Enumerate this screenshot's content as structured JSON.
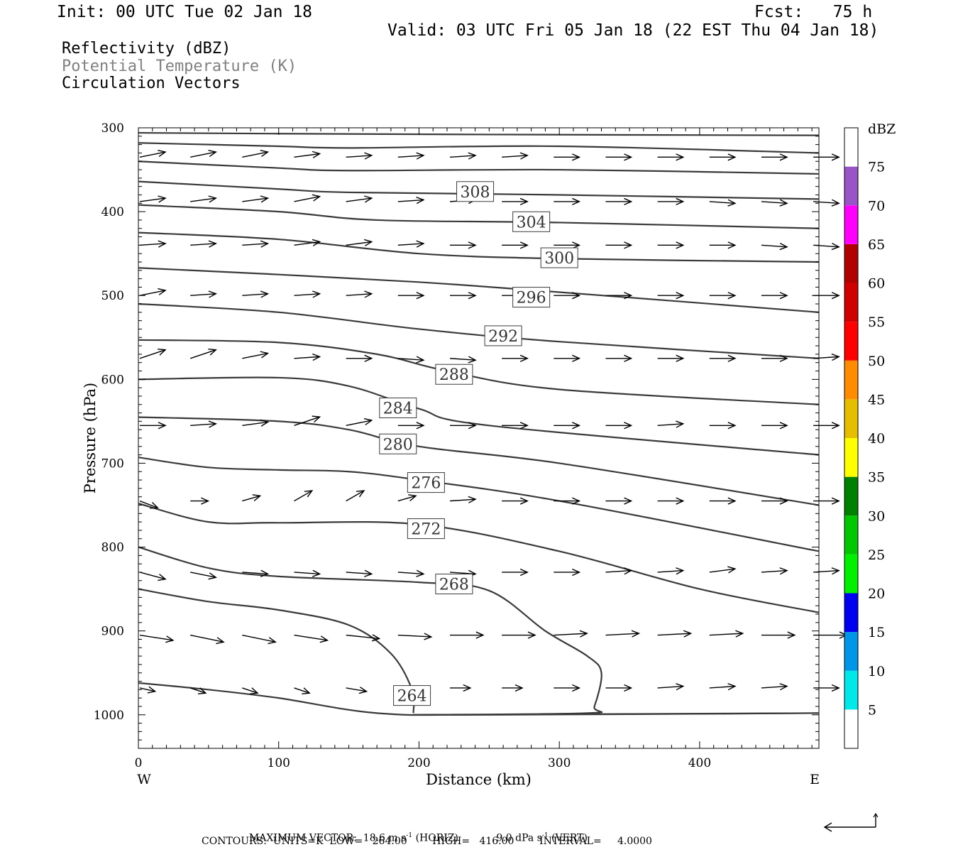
{
  "header": {
    "init": "Init: 00 UTC Tue 02 Jan 18",
    "fcst": "Fcst:   75 h",
    "valid": "Valid: 03 UTC Fri 05 Jan 18 (22 EST Thu 04 Jan 18)",
    "field1": "Reflectivity (dBZ)",
    "field2": "Potential Temperature (K)",
    "field3": "Circulation Vectors"
  },
  "footer": {
    "max_vector_label": "MAXIMUM VECTOR:",
    "max_horiz": "18.6 m s",
    "max_horiz_unit": "(HORIZ)",
    "max_vert": "9.0 dPa s",
    "max_vert_unit": "(VERT)",
    "sup": "-1",
    "contours": "CONTOURS:  UNITS=K  LOW=   264.00        HIGH=   416.00        INTERVAL=     4.0000"
  },
  "colors": {
    "contour": "#3a3a3a",
    "vector": "#000000",
    "grey_text": "#808080"
  },
  "chart_data": {
    "type": "cross-section",
    "xlabel": "Distance (km)",
    "ylabel": "Pressure (hPa)",
    "xlim": [
      0,
      485
    ],
    "ylim": [
      1040,
      300
    ],
    "x_ticks": [
      0,
      100,
      200,
      300,
      400
    ],
    "y_ticks": [
      300,
      400,
      500,
      600,
      700,
      800,
      900,
      1000
    ],
    "x_end_labels": {
      "left": "W",
      "right": "E"
    },
    "colorbar": {
      "title": "dBZ",
      "labels": [
        "75",
        "70",
        "65",
        "60",
        "55",
        "50",
        "45",
        "40",
        "35",
        "30",
        "25",
        "20",
        "15",
        "10",
        "5"
      ],
      "bands": [
        {
          "from": 0,
          "to": 5,
          "color": "#ffffff"
        },
        {
          "from": 5,
          "to": 10,
          "color": "#00e8e8"
        },
        {
          "from": 10,
          "to": 15,
          "color": "#0096e8"
        },
        {
          "from": 15,
          "to": 20,
          "color": "#0000f0"
        },
        {
          "from": 20,
          "to": 25,
          "color": "#00f000"
        },
        {
          "from": 25,
          "to": 30,
          "color": "#00c800"
        },
        {
          "from": 30,
          "to": 35,
          "color": "#008000"
        },
        {
          "from": 35,
          "to": 40,
          "color": "#ffff00"
        },
        {
          "from": 40,
          "to": 45,
          "color": "#e6be00"
        },
        {
          "from": 45,
          "to": 50,
          "color": "#ff8c00"
        },
        {
          "from": 50,
          "to": 55,
          "color": "#ff0000"
        },
        {
          "from": 55,
          "to": 60,
          "color": "#d00000"
        },
        {
          "from": 60,
          "to": 65,
          "color": "#b00000"
        },
        {
          "from": 65,
          "to": 70,
          "color": "#ff00ff"
        },
        {
          "from": 70,
          "to": 75,
          "color": "#9955c8"
        },
        {
          "from": 75,
          "to": 80,
          "color": "#ffffff"
        }
      ]
    },
    "isentropes": [
      {
        "theta": null,
        "points": [
          [
            0,
            306
          ],
          [
            100,
            307
          ],
          [
            250,
            308
          ],
          [
            485,
            309
          ]
        ]
      },
      {
        "theta": null,
        "points": [
          [
            0,
            318
          ],
          [
            100,
            322
          ],
          [
            150,
            324
          ],
          [
            300,
            322
          ],
          [
            485,
            330
          ]
        ]
      },
      {
        "theta": null,
        "points": [
          [
            0,
            340
          ],
          [
            100,
            348
          ],
          [
            150,
            351
          ],
          [
            300,
            350
          ],
          [
            485,
            355
          ]
        ]
      },
      {
        "theta": 308,
        "label_at": [
          240,
          376
        ],
        "points": [
          [
            0,
            364
          ],
          [
            100,
            373
          ],
          [
            150,
            377
          ],
          [
            300,
            380
          ],
          [
            485,
            385
          ]
        ]
      },
      {
        "theta": 304,
        "label_at": [
          280,
          412
        ],
        "points": [
          [
            0,
            392
          ],
          [
            100,
            400
          ],
          [
            170,
            410
          ],
          [
            300,
            413
          ],
          [
            485,
            420
          ]
        ]
      },
      {
        "theta": 300,
        "label_at": [
          300,
          455
        ],
        "points": [
          [
            0,
            425
          ],
          [
            100,
            433
          ],
          [
            200,
            450
          ],
          [
            300,
            456
          ],
          [
            485,
            460
          ]
        ]
      },
      {
        "theta": 296,
        "label_at": [
          280,
          502
        ],
        "points": [
          [
            0,
            467
          ],
          [
            100,
            475
          ],
          [
            200,
            484
          ],
          [
            300,
            496
          ],
          [
            485,
            520
          ]
        ]
      },
      {
        "theta": 292,
        "label_at": [
          260,
          548
        ],
        "points": [
          [
            0,
            510
          ],
          [
            100,
            520
          ],
          [
            200,
            540
          ],
          [
            300,
            555
          ],
          [
            485,
            575
          ]
        ]
      },
      {
        "theta": 288,
        "label_at": [
          225,
          594
        ],
        "points": [
          [
            0,
            553
          ],
          [
            100,
            556
          ],
          [
            170,
            570
          ],
          [
            220,
            590
          ],
          [
            300,
            612
          ],
          [
            485,
            630
          ]
        ]
      },
      {
        "theta": 284,
        "label_at": [
          185,
          634
        ],
        "points": [
          [
            0,
            600
          ],
          [
            100,
            598
          ],
          [
            150,
            608
          ],
          [
            200,
            635
          ],
          [
            250,
            655
          ],
          [
            485,
            690
          ]
        ]
      },
      {
        "theta": 280,
        "label_at": [
          185,
          677
        ],
        "points": [
          [
            0,
            645
          ],
          [
            100,
            650
          ],
          [
            150,
            660
          ],
          [
            200,
            680
          ],
          [
            300,
            700
          ],
          [
            485,
            750
          ]
        ]
      },
      {
        "theta": 276,
        "label_at": [
          205,
          723
        ],
        "points": [
          [
            0,
            693
          ],
          [
            50,
            705
          ],
          [
            100,
            708
          ],
          [
            150,
            710
          ],
          [
            200,
            720
          ],
          [
            300,
            745
          ],
          [
            485,
            805
          ]
        ]
      },
      {
        "theta": 272,
        "label_at": [
          205,
          778
        ],
        "points": [
          [
            0,
            748
          ],
          [
            50,
            770
          ],
          [
            100,
            771
          ],
          [
            200,
            773
          ],
          [
            300,
            805
          ],
          [
            400,
            850
          ],
          [
            485,
            878
          ]
        ]
      },
      {
        "theta": 268,
        "label_at": [
          225,
          844
        ],
        "points": [
          [
            0,
            800
          ],
          [
            50,
            825
          ],
          [
            100,
            835
          ],
          [
            200,
            842
          ],
          [
            250,
            852
          ],
          [
            290,
            900
          ],
          [
            320,
            930
          ],
          [
            330,
            950
          ],
          [
            325,
            990
          ],
          [
            320,
            998
          ],
          [
            200,
            1000
          ],
          [
            485,
            998
          ]
        ]
      },
      {
        "theta": 264,
        "label_at": [
          195,
          977
        ],
        "points": [
          [
            0,
            850
          ],
          [
            50,
            865
          ],
          [
            100,
            875
          ],
          [
            150,
            893
          ],
          [
            180,
            927
          ],
          [
            195,
            970
          ],
          [
            196,
            998
          ]
        ]
      },
      {
        "theta": null,
        "points": [
          [
            0,
            962
          ],
          [
            50,
            970
          ],
          [
            100,
            980
          ],
          [
            170,
            998
          ],
          [
            250,
            1000
          ],
          [
            485,
            998
          ]
        ]
      }
    ],
    "vectors_note": "Circulation vectors: horizontal (m/s) and vertical (dPa/s) components shown as arrows; max 18.6 m s-1 horiz, 9.0 dPa s-1 vert",
    "vector_rows": [
      {
        "p": 335,
        "x": [
          0,
          36,
          73,
          110,
          147,
          184,
          221,
          258,
          295,
          332,
          369,
          406,
          443,
          480
        ],
        "u": [
          1,
          1,
          1,
          1,
          1,
          1,
          1,
          1,
          1,
          1,
          1,
          1,
          1,
          1
        ],
        "w": [
          0.3,
          0.3,
          0.3,
          0.2,
          0.1,
          0.1,
          0.1,
          0.1,
          0,
          0,
          0,
          0,
          0,
          0
        ]
      },
      {
        "p": 388,
        "x": [
          0,
          36,
          73,
          110,
          147,
          184,
          221,
          258,
          295,
          332,
          369,
          406,
          443,
          480
        ],
        "u": [
          1,
          1,
          1,
          1,
          1,
          1,
          1,
          1,
          1,
          1,
          1,
          1,
          1,
          1
        ],
        "w": [
          0.2,
          0.2,
          0.2,
          0.3,
          0.2,
          0.1,
          0.1,
          0,
          0,
          0,
          0,
          -0.1,
          -0.1,
          -0.1
        ]
      },
      {
        "p": 440,
        "x": [
          0,
          36,
          73,
          110,
          147,
          184,
          221,
          258,
          295,
          332,
          369,
          406,
          443,
          480
        ],
        "u": [
          1,
          1,
          1,
          1,
          1,
          1,
          1,
          1,
          1,
          1,
          1,
          1,
          1,
          1
        ],
        "w": [
          0.1,
          0.1,
          0.1,
          0.2,
          0.2,
          0.1,
          0,
          0,
          0,
          0,
          0,
          0,
          -0.1,
          -0.1
        ]
      },
      {
        "p": 500,
        "x": [
          0,
          36,
          73,
          110,
          147,
          184,
          221,
          258,
          295,
          332,
          369,
          406,
          443,
          480
        ],
        "u": [
          1,
          1,
          1,
          1,
          1,
          1,
          1,
          1,
          1,
          1,
          1,
          1,
          1,
          1
        ],
        "w": [
          0.3,
          0.1,
          0.1,
          0.1,
          0.1,
          0,
          0,
          0,
          0,
          0,
          0,
          0,
          0,
          0
        ]
      },
      {
        "p": 575,
        "x": [
          0,
          36,
          73,
          110,
          147,
          184,
          221,
          258,
          295,
          332,
          369,
          406,
          443,
          480
        ],
        "u": [
          1,
          1,
          1,
          1,
          1,
          1,
          1,
          1,
          1,
          1,
          1,
          1,
          1,
          1
        ],
        "w": [
          0.5,
          0.5,
          0.3,
          0.1,
          0,
          -0.1,
          -0.1,
          0,
          0,
          0,
          0,
          0,
          0,
          0.1
        ]
      },
      {
        "p": 655,
        "x": [
          0,
          36,
          73,
          110,
          147,
          184,
          221,
          258,
          295,
          332,
          369,
          406,
          443,
          480
        ],
        "u": [
          1,
          1,
          1,
          1,
          1,
          1,
          1,
          1,
          1,
          1,
          1,
          1,
          1,
          1
        ],
        "w": [
          0,
          0.1,
          0.2,
          0.5,
          0.3,
          0,
          0,
          0,
          0,
          0,
          0.1,
          0,
          0,
          0
        ]
      },
      {
        "p": 745,
        "x": [
          0,
          36,
          73,
          110,
          147,
          184,
          221,
          258,
          295,
          332,
          369,
          406,
          443,
          480
        ],
        "u": [
          0.7,
          0.7,
          0.7,
          0.7,
          0.7,
          0.7,
          1,
          1,
          1,
          1,
          1,
          1,
          1,
          1
        ],
        "w": [
          -0.4,
          0,
          0.3,
          0.6,
          0.6,
          0.3,
          0.1,
          0,
          0,
          0,
          0,
          0,
          0,
          0
        ]
      },
      {
        "p": 830,
        "x": [
          0,
          36,
          73,
          110,
          147,
          184,
          221,
          258,
          295,
          332,
          369,
          406,
          443,
          480
        ],
        "u": [
          1,
          1,
          1,
          1,
          1,
          1,
          1,
          1,
          1,
          1,
          1,
          1,
          1,
          1
        ],
        "w": [
          -0.4,
          -0.3,
          -0.1,
          -0.1,
          -0.1,
          -0.1,
          -0.1,
          0,
          0,
          0.1,
          0.1,
          0.2,
          0.1,
          0.1
        ]
      },
      {
        "p": 905,
        "x": [
          0,
          36,
          73,
          110,
          147,
          184,
          221,
          258,
          295,
          332,
          369,
          406,
          443,
          480
        ],
        "u": [
          1.3,
          1.3,
          1.3,
          1.3,
          1.3,
          1.3,
          1.3,
          1.3,
          1.3,
          1.3,
          1.3,
          1.3,
          1.3,
          1.3
        ],
        "w": [
          -0.3,
          -0.4,
          -0.4,
          -0.3,
          -0.2,
          -0.1,
          0,
          0,
          0.1,
          0.1,
          0.1,
          0.1,
          0,
          0
        ]
      },
      {
        "p": 968,
        "x": [
          0,
          36,
          73,
          110,
          147,
          184,
          221,
          258,
          295,
          332,
          369,
          406,
          443,
          480
        ],
        "u": [
          0.6,
          0.6,
          0.6,
          0.6,
          0.8,
          0.8,
          0.8,
          0.8,
          1,
          1,
          1,
          1,
          1,
          1
        ],
        "w": [
          -0.2,
          -0.3,
          -0.3,
          -0.3,
          -0.2,
          -0.1,
          0,
          0,
          0,
          0,
          0.1,
          0.1,
          0.1,
          0
        ]
      }
    ],
    "reference_vector": {
      "u": -1,
      "w": 0.5
    }
  }
}
